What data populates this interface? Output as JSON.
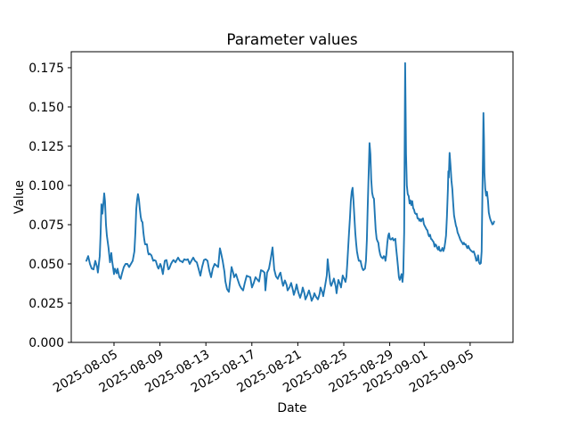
{
  "chart_data": {
    "type": "line",
    "title": "Parameter values",
    "xlabel": "Date",
    "ylabel": "Value",
    "line_color": "#1f77b4",
    "text_color": "#000000",
    "background_color": "#ffffff",
    "grid": false,
    "legend": null,
    "ylim": [
      0,
      0.1852
    ],
    "xlim_days": [
      -3.72,
      34.73
    ],
    "x_day_zero": "2025-08-05",
    "y_ticks": [
      {
        "value": 0.0,
        "label": "0.000"
      },
      {
        "value": 0.025,
        "label": "0.025"
      },
      {
        "value": 0.05,
        "label": "0.050"
      },
      {
        "value": 0.075,
        "label": "0.075"
      },
      {
        "value": 0.1,
        "label": "0.100"
      },
      {
        "value": 0.125,
        "label": "0.125"
      },
      {
        "value": 0.15,
        "label": "0.150"
      },
      {
        "value": 0.175,
        "label": "0.175"
      }
    ],
    "x_ticks": [
      {
        "day": 0,
        "label": "2025-08-05"
      },
      {
        "day": 4,
        "label": "2025-08-09"
      },
      {
        "day": 8,
        "label": "2025-08-13"
      },
      {
        "day": 12,
        "label": "2025-08-17"
      },
      {
        "day": 16,
        "label": "2025-08-21"
      },
      {
        "day": 20,
        "label": "2025-08-25"
      },
      {
        "day": 24,
        "label": "2025-08-29"
      },
      {
        "day": 27,
        "label": "2025-09-01"
      },
      {
        "day": 31,
        "label": "2025-09-05"
      }
    ],
    "points": [
      [
        -2.4,
        0.052
      ],
      [
        -2.25,
        0.055
      ],
      [
        -2.09,
        0.05
      ],
      [
        -1.94,
        0.047
      ],
      [
        -1.78,
        0.0465
      ],
      [
        -1.63,
        0.052
      ],
      [
        -1.47,
        0.048
      ],
      [
        -1.4,
        0.0445
      ],
      [
        -1.24,
        0.055
      ],
      [
        -1.16,
        0.07
      ],
      [
        -1.09,
        0.088
      ],
      [
        -1.01,
        0.082
      ],
      [
        -0.93,
        0.088
      ],
      [
        -0.85,
        0.095
      ],
      [
        -0.78,
        0.09
      ],
      [
        -0.7,
        0.075
      ],
      [
        -0.62,
        0.068
      ],
      [
        -0.47,
        0.06
      ],
      [
        -0.35,
        0.051
      ],
      [
        -0.23,
        0.057
      ],
      [
        -0.16,
        0.052
      ],
      [
        0.0,
        0.0435
      ],
      [
        0.08,
        0.047
      ],
      [
        0.23,
        0.044
      ],
      [
        0.31,
        0.047
      ],
      [
        0.47,
        0.0415
      ],
      [
        0.58,
        0.0405
      ],
      [
        0.7,
        0.044
      ],
      [
        0.85,
        0.048
      ],
      [
        1.01,
        0.05
      ],
      [
        1.16,
        0.05
      ],
      [
        1.32,
        0.048
      ],
      [
        1.47,
        0.05
      ],
      [
        1.63,
        0.052
      ],
      [
        1.78,
        0.058
      ],
      [
        1.86,
        0.07
      ],
      [
        1.94,
        0.085
      ],
      [
        2.02,
        0.091
      ],
      [
        2.09,
        0.0945
      ],
      [
        2.17,
        0.091
      ],
      [
        2.25,
        0.085
      ],
      [
        2.33,
        0.08
      ],
      [
        2.4,
        0.0775
      ],
      [
        2.48,
        0.0765
      ],
      [
        2.56,
        0.07
      ],
      [
        2.64,
        0.0655
      ],
      [
        2.71,
        0.0625
      ],
      [
        2.87,
        0.0625
      ],
      [
        2.95,
        0.058
      ],
      [
        3.02,
        0.056
      ],
      [
        3.1,
        0.0565
      ],
      [
        3.26,
        0.0555
      ],
      [
        3.41,
        0.052
      ],
      [
        3.49,
        0.0525
      ],
      [
        3.64,
        0.052
      ],
      [
        3.8,
        0.048
      ],
      [
        3.88,
        0.047
      ],
      [
        4.03,
        0.05
      ],
      [
        4.11,
        0.0485
      ],
      [
        4.26,
        0.0435
      ],
      [
        4.42,
        0.052
      ],
      [
        4.57,
        0.0525
      ],
      [
        4.73,
        0.0465
      ],
      [
        4.81,
        0.047
      ],
      [
        4.96,
        0.05
      ],
      [
        5.12,
        0.052
      ],
      [
        5.19,
        0.0525
      ],
      [
        5.35,
        0.051
      ],
      [
        5.5,
        0.053
      ],
      [
        5.58,
        0.054
      ],
      [
        5.74,
        0.052
      ],
      [
        5.89,
        0.0515
      ],
      [
        5.97,
        0.051
      ],
      [
        6.12,
        0.053
      ],
      [
        6.28,
        0.0525
      ],
      [
        6.43,
        0.053
      ],
      [
        6.59,
        0.05
      ],
      [
        6.74,
        0.052
      ],
      [
        6.9,
        0.054
      ],
      [
        7.05,
        0.052
      ],
      [
        7.21,
        0.051
      ],
      [
        7.36,
        0.047
      ],
      [
        7.52,
        0.0425
      ],
      [
        7.67,
        0.048
      ],
      [
        7.83,
        0.0525
      ],
      [
        7.98,
        0.053
      ],
      [
        8.14,
        0.052
      ],
      [
        8.29,
        0.046
      ],
      [
        8.45,
        0.0415
      ],
      [
        8.6,
        0.047
      ],
      [
        8.76,
        0.05
      ],
      [
        8.91,
        0.049
      ],
      [
        9.07,
        0.048
      ],
      [
        9.22,
        0.06
      ],
      [
        9.3,
        0.0575
      ],
      [
        9.46,
        0.052
      ],
      [
        9.61,
        0.045
      ],
      [
        9.69,
        0.039
      ],
      [
        9.84,
        0.034
      ],
      [
        10.0,
        0.0322
      ],
      [
        10.15,
        0.042
      ],
      [
        10.23,
        0.048
      ],
      [
        10.39,
        0.044
      ],
      [
        10.46,
        0.0415
      ],
      [
        10.62,
        0.0435
      ],
      [
        10.77,
        0.04
      ],
      [
        10.93,
        0.0365
      ],
      [
        11.08,
        0.0345
      ],
      [
        11.24,
        0.0331
      ],
      [
        11.39,
        0.038
      ],
      [
        11.55,
        0.0425
      ],
      [
        11.7,
        0.042
      ],
      [
        11.86,
        0.0415
      ],
      [
        12.01,
        0.035
      ],
      [
        12.17,
        0.038
      ],
      [
        12.32,
        0.0415
      ],
      [
        12.48,
        0.04
      ],
      [
        12.63,
        0.0388
      ],
      [
        12.79,
        0.046
      ],
      [
        12.94,
        0.0455
      ],
      [
        13.1,
        0.0445
      ],
      [
        13.18,
        0.0331
      ],
      [
        13.33,
        0.0445
      ],
      [
        13.49,
        0.047
      ],
      [
        13.64,
        0.053
      ],
      [
        13.8,
        0.0605
      ],
      [
        13.87,
        0.054
      ],
      [
        13.95,
        0.0465
      ],
      [
        14.1,
        0.042
      ],
      [
        14.26,
        0.0405
      ],
      [
        14.41,
        0.0435
      ],
      [
        14.49,
        0.0445
      ],
      [
        14.65,
        0.038
      ],
      [
        14.72,
        0.036
      ],
      [
        14.88,
        0.0395
      ],
      [
        15.03,
        0.0365
      ],
      [
        15.11,
        0.0331
      ],
      [
        15.27,
        0.035
      ],
      [
        15.42,
        0.0379
      ],
      [
        15.58,
        0.033
      ],
      [
        15.65,
        0.0303
      ],
      [
        15.81,
        0.034
      ],
      [
        15.89,
        0.0369
      ],
      [
        16.04,
        0.032
      ],
      [
        16.2,
        0.0284
      ],
      [
        16.35,
        0.032
      ],
      [
        16.43,
        0.035
      ],
      [
        16.58,
        0.031
      ],
      [
        16.66,
        0.0274
      ],
      [
        16.82,
        0.03
      ],
      [
        16.97,
        0.0331
      ],
      [
        17.13,
        0.029
      ],
      [
        17.2,
        0.0265
      ],
      [
        17.36,
        0.029
      ],
      [
        17.44,
        0.0313
      ],
      [
        17.59,
        0.029
      ],
      [
        17.75,
        0.0274
      ],
      [
        17.9,
        0.031
      ],
      [
        17.98,
        0.035
      ],
      [
        18.13,
        0.032
      ],
      [
        18.21,
        0.0294
      ],
      [
        18.37,
        0.036
      ],
      [
        18.52,
        0.0426
      ],
      [
        18.6,
        0.053
      ],
      [
        18.68,
        0.047
      ],
      [
        18.83,
        0.0375
      ],
      [
        18.91,
        0.036
      ],
      [
        19.06,
        0.039
      ],
      [
        19.14,
        0.0407
      ],
      [
        19.3,
        0.0355
      ],
      [
        19.37,
        0.0313
      ],
      [
        19.53,
        0.0398
      ],
      [
        19.68,
        0.037
      ],
      [
        19.76,
        0.035
      ],
      [
        19.91,
        0.0426
      ],
      [
        20.07,
        0.04
      ],
      [
        20.15,
        0.0385
      ],
      [
        20.23,
        0.042
      ],
      [
        20.3,
        0.05
      ],
      [
        20.38,
        0.06
      ],
      [
        20.46,
        0.07
      ],
      [
        20.54,
        0.08
      ],
      [
        20.61,
        0.09
      ],
      [
        20.69,
        0.096
      ],
      [
        20.77,
        0.0985
      ],
      [
        20.84,
        0.091
      ],
      [
        20.92,
        0.08
      ],
      [
        21.0,
        0.07
      ],
      [
        21.08,
        0.063
      ],
      [
        21.15,
        0.058
      ],
      [
        21.23,
        0.0545
      ],
      [
        21.31,
        0.052
      ],
      [
        21.46,
        0.052
      ],
      [
        21.54,
        0.049
      ],
      [
        21.62,
        0.047
      ],
      [
        21.7,
        0.046
      ],
      [
        21.77,
        0.0465
      ],
      [
        21.85,
        0.047
      ],
      [
        21.93,
        0.052
      ],
      [
        22.01,
        0.065
      ],
      [
        22.08,
        0.085
      ],
      [
        22.16,
        0.105
      ],
      [
        22.24,
        0.127
      ],
      [
        22.32,
        0.12
      ],
      [
        22.39,
        0.104
      ],
      [
        22.47,
        0.0955
      ],
      [
        22.55,
        0.0925
      ],
      [
        22.63,
        0.0915
      ],
      [
        22.7,
        0.082
      ],
      [
        22.78,
        0.072
      ],
      [
        22.86,
        0.066
      ],
      [
        22.94,
        0.0645
      ],
      [
        23.01,
        0.0635
      ],
      [
        23.09,
        0.059
      ],
      [
        23.17,
        0.056
      ],
      [
        23.25,
        0.0545
      ],
      [
        23.32,
        0.054
      ],
      [
        23.4,
        0.0535
      ],
      [
        23.48,
        0.055
      ],
      [
        23.56,
        0.0545
      ],
      [
        23.63,
        0.052
      ],
      [
        23.71,
        0.056
      ],
      [
        23.79,
        0.0635
      ],
      [
        23.87,
        0.068
      ],
      [
        23.94,
        0.0695
      ],
      [
        24.02,
        0.066
      ],
      [
        24.1,
        0.0655
      ],
      [
        24.18,
        0.066
      ],
      [
        24.25,
        0.0665
      ],
      [
        24.33,
        0.065
      ],
      [
        24.41,
        0.0655
      ],
      [
        24.49,
        0.066
      ],
      [
        24.56,
        0.06
      ],
      [
        24.64,
        0.0545
      ],
      [
        24.72,
        0.048
      ],
      [
        24.8,
        0.0415
      ],
      [
        24.87,
        0.0398
      ],
      [
        24.95,
        0.0415
      ],
      [
        25.03,
        0.0435
      ],
      [
        25.11,
        0.0385
      ],
      [
        25.18,
        0.044
      ],
      [
        25.26,
        0.07
      ],
      [
        25.34,
        0.178
      ],
      [
        25.38,
        0.15
      ],
      [
        25.42,
        0.12
      ],
      [
        25.49,
        0.1
      ],
      [
        25.57,
        0.0945
      ],
      [
        25.65,
        0.0932
      ],
      [
        25.73,
        0.0885
      ],
      [
        25.8,
        0.0905
      ],
      [
        25.88,
        0.0875
      ],
      [
        25.96,
        0.09
      ],
      [
        26.04,
        0.0855
      ],
      [
        26.11,
        0.0847
      ],
      [
        26.19,
        0.0825
      ],
      [
        26.27,
        0.0818
      ],
      [
        26.35,
        0.082
      ],
      [
        26.42,
        0.079
      ],
      [
        26.5,
        0.079
      ],
      [
        26.58,
        0.0775
      ],
      [
        26.66,
        0.0785
      ],
      [
        26.73,
        0.0771
      ],
      [
        26.81,
        0.0785
      ],
      [
        26.89,
        0.079
      ],
      [
        26.97,
        0.0755
      ],
      [
        27.04,
        0.0743
      ],
      [
        27.12,
        0.0733
      ],
      [
        27.2,
        0.072
      ],
      [
        27.28,
        0.0714
      ],
      [
        27.35,
        0.069
      ],
      [
        27.43,
        0.0676
      ],
      [
        27.51,
        0.0686
      ],
      [
        27.59,
        0.066
      ],
      [
        27.66,
        0.0657
      ],
      [
        27.74,
        0.0647
      ],
      [
        27.82,
        0.0639
      ],
      [
        27.9,
        0.061
      ],
      [
        27.97,
        0.0625
      ],
      [
        28.05,
        0.0619
      ],
      [
        28.13,
        0.06
      ],
      [
        28.21,
        0.0591
      ],
      [
        28.28,
        0.061
      ],
      [
        28.36,
        0.0585
      ],
      [
        28.44,
        0.0582
      ],
      [
        28.52,
        0.059
      ],
      [
        28.59,
        0.0602
      ],
      [
        28.67,
        0.0582
      ],
      [
        28.75,
        0.06
      ],
      [
        28.83,
        0.0639
      ],
      [
        28.9,
        0.068
      ],
      [
        28.98,
        0.08
      ],
      [
        29.06,
        0.0975
      ],
      [
        29.1,
        0.109
      ],
      [
        29.14,
        0.105
      ],
      [
        29.21,
        0.1207
      ],
      [
        29.29,
        0.113
      ],
      [
        29.37,
        0.103
      ],
      [
        29.45,
        0.0975
      ],
      [
        29.52,
        0.089
      ],
      [
        29.6,
        0.0809
      ],
      [
        29.68,
        0.0775
      ],
      [
        29.76,
        0.0745
      ],
      [
        29.83,
        0.073
      ],
      [
        29.91,
        0.07
      ],
      [
        29.99,
        0.0685
      ],
      [
        30.07,
        0.067
      ],
      [
        30.14,
        0.0655
      ],
      [
        30.22,
        0.0645
      ],
      [
        30.3,
        0.0635
      ],
      [
        30.38,
        0.0625
      ],
      [
        30.45,
        0.0635
      ],
      [
        30.53,
        0.0625
      ],
      [
        30.61,
        0.0625
      ],
      [
        30.69,
        0.061
      ],
      [
        30.76,
        0.06
      ],
      [
        30.84,
        0.0615
      ],
      [
        30.92,
        0.06
      ],
      [
        31.0,
        0.059
      ],
      [
        31.07,
        0.0585
      ],
      [
        31.15,
        0.058
      ],
      [
        31.23,
        0.0575
      ],
      [
        31.31,
        0.058
      ],
      [
        31.38,
        0.0565
      ],
      [
        31.46,
        0.0545
      ],
      [
        31.54,
        0.052
      ],
      [
        31.62,
        0.0525
      ],
      [
        31.69,
        0.0555
      ],
      [
        31.77,
        0.051
      ],
      [
        31.85,
        0.05
      ],
      [
        31.93,
        0.0505
      ],
      [
        32.0,
        0.058
      ],
      [
        32.04,
        0.08
      ],
      [
        32.08,
        0.101
      ],
      [
        32.12,
        0.12
      ],
      [
        32.16,
        0.1462
      ],
      [
        32.2,
        0.13
      ],
      [
        32.24,
        0.108
      ],
      [
        32.31,
        0.098
      ],
      [
        32.39,
        0.0935
      ],
      [
        32.47,
        0.096
      ],
      [
        32.55,
        0.0903
      ],
      [
        32.62,
        0.0828
      ],
      [
        32.7,
        0.08
      ],
      [
        32.78,
        0.078
      ],
      [
        32.86,
        0.0765
      ],
      [
        32.93,
        0.0752
      ],
      [
        33.01,
        0.0755
      ],
      [
        33.09,
        0.077
      ]
    ]
  }
}
